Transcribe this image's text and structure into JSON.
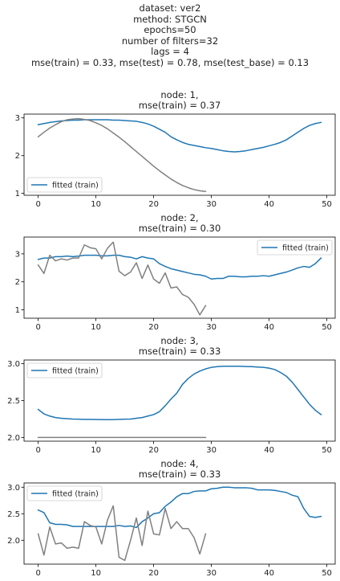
{
  "figure": {
    "suptitle_lines": [
      "dataset: ver2",
      "method: STGCN",
      "epochs=50",
      "number of filters=32",
      "lags = 4",
      "mse(train) = 0.33, mse(test) = 0.78, mse(test_base) = 0.13"
    ]
  },
  "colors": {
    "fitted": "#1f77b4",
    "observed": "#808080",
    "axis": "#000000"
  },
  "chart_data": [
    {
      "type": "line",
      "title": [
        "node: 1,",
        "mse(train) = 0.37"
      ],
      "xlim": [
        -2.45,
        51.45
      ],
      "ylim": [
        0.95,
        3.1
      ],
      "xticks": [
        0,
        10,
        20,
        30,
        40,
        50
      ],
      "yticks": [
        1,
        2,
        3
      ],
      "ytick_labels": [
        "1",
        "2",
        "3"
      ],
      "legend": {
        "label": "fitted (train)",
        "loc": "lower left"
      },
      "series": [
        {
          "name": "fitted (train)",
          "color": "#1f77b4",
          "x": [
            0,
            1,
            2,
            3,
            4,
            5,
            6,
            7,
            8,
            9,
            10,
            11,
            12,
            13,
            14,
            15,
            16,
            17,
            18,
            19,
            20,
            21,
            22,
            23,
            24,
            25,
            26,
            27,
            28,
            29,
            30,
            31,
            32,
            33,
            34,
            35,
            36,
            37,
            38,
            39,
            40,
            41,
            42,
            43,
            44,
            45,
            46,
            47,
            48,
            49
          ],
          "y": [
            2.82,
            2.85,
            2.88,
            2.9,
            2.92,
            2.93,
            2.94,
            2.94,
            2.95,
            2.95,
            2.95,
            2.95,
            2.95,
            2.94,
            2.94,
            2.93,
            2.92,
            2.91,
            2.88,
            2.84,
            2.78,
            2.7,
            2.62,
            2.5,
            2.42,
            2.35,
            2.3,
            2.27,
            2.24,
            2.21,
            2.19,
            2.16,
            2.13,
            2.11,
            2.1,
            2.11,
            2.13,
            2.16,
            2.19,
            2.22,
            2.26,
            2.3,
            2.35,
            2.42,
            2.52,
            2.62,
            2.72,
            2.8,
            2.85,
            2.88
          ]
        },
        {
          "name": "",
          "color": "#808080",
          "x": [
            0,
            1,
            2,
            3,
            4,
            5,
            6,
            7,
            8,
            9,
            10,
            11,
            12,
            13,
            14,
            15,
            16,
            17,
            18,
            19,
            20,
            21,
            22,
            23,
            24,
            25,
            26,
            27,
            28,
            29
          ],
          "y": [
            2.5,
            2.62,
            2.73,
            2.82,
            2.9,
            2.95,
            2.97,
            2.98,
            2.96,
            2.93,
            2.87,
            2.8,
            2.71,
            2.6,
            2.49,
            2.37,
            2.24,
            2.11,
            1.98,
            1.85,
            1.72,
            1.6,
            1.49,
            1.38,
            1.29,
            1.21,
            1.15,
            1.1,
            1.07,
            1.05
          ]
        }
      ]
    },
    {
      "type": "line",
      "title": [
        "node: 2,",
        "mse(train) = 0.30"
      ],
      "xlim": [
        -2.45,
        51.45
      ],
      "ylim": [
        0.7,
        3.6
      ],
      "xticks": [
        0,
        10,
        20,
        30,
        40,
        50
      ],
      "yticks": [
        1,
        2,
        3
      ],
      "ytick_labels": [
        "1",
        "2",
        "3"
      ],
      "legend": {
        "label": "fitted (train)",
        "loc": "upper right"
      },
      "series": [
        {
          "name": "fitted (train)",
          "color": "#1f77b4",
          "x": [
            0,
            1,
            2,
            3,
            4,
            5,
            6,
            7,
            8,
            9,
            10,
            11,
            12,
            13,
            14,
            15,
            16,
            17,
            18,
            19,
            20,
            21,
            22,
            23,
            24,
            25,
            26,
            27,
            28,
            29,
            30,
            31,
            32,
            33,
            34,
            35,
            36,
            37,
            38,
            39,
            40,
            41,
            42,
            43,
            44,
            45,
            46,
            47,
            48,
            49
          ],
          "y": [
            2.8,
            2.85,
            2.85,
            2.9,
            2.9,
            2.92,
            2.9,
            2.92,
            2.95,
            2.95,
            2.95,
            2.93,
            2.93,
            2.95,
            2.95,
            2.9,
            2.88,
            2.82,
            2.9,
            2.85,
            2.82,
            2.65,
            2.55,
            2.47,
            2.42,
            2.37,
            2.32,
            2.27,
            2.25,
            2.2,
            2.1,
            2.12,
            2.12,
            2.2,
            2.2,
            2.18,
            2.18,
            2.2,
            2.2,
            2.22,
            2.2,
            2.25,
            2.3,
            2.35,
            2.42,
            2.5,
            2.55,
            2.52,
            2.65,
            2.85
          ]
        },
        {
          "name": "",
          "color": "#808080",
          "x": [
            0,
            1,
            2,
            3,
            4,
            5,
            6,
            7,
            8,
            9,
            10,
            11,
            12,
            13,
            14,
            15,
            16,
            17,
            18,
            19,
            20,
            21,
            22,
            23,
            24,
            25,
            26,
            27,
            28,
            29
          ],
          "y": [
            2.6,
            2.3,
            2.95,
            2.75,
            2.82,
            2.78,
            2.85,
            2.85,
            3.32,
            3.22,
            3.18,
            2.82,
            3.2,
            3.42,
            2.38,
            2.22,
            2.35,
            2.68,
            2.12,
            2.6,
            2.1,
            1.95,
            2.32,
            1.78,
            1.82,
            1.55,
            1.45,
            1.2,
            0.82,
            1.15
          ]
        }
      ]
    },
    {
      "type": "line",
      "title": [
        "node: 3,",
        "mse(train) = 0.33"
      ],
      "xlim": [
        -2.45,
        51.45
      ],
      "ylim": [
        1.95,
        3.05
      ],
      "xticks": [
        0,
        10,
        20,
        30,
        40,
        50
      ],
      "yticks": [
        2.0,
        2.5,
        3.0
      ],
      "ytick_labels": [
        "2.0",
        "2.5",
        "3.0"
      ],
      "legend": {
        "label": "fitted (train)",
        "loc": "upper left"
      },
      "series": [
        {
          "name": "fitted (train)",
          "color": "#1f77b4",
          "x": [
            0,
            1,
            2,
            3,
            4,
            5,
            6,
            7,
            8,
            9,
            10,
            11,
            12,
            13,
            14,
            15,
            16,
            17,
            18,
            19,
            20,
            21,
            22,
            23,
            24,
            25,
            26,
            27,
            28,
            29,
            30,
            31,
            32,
            33,
            34,
            35,
            36,
            37,
            38,
            39,
            40,
            41,
            42,
            43,
            44,
            45,
            46,
            47,
            48,
            49
          ],
          "y": [
            2.38,
            2.32,
            2.29,
            2.27,
            2.26,
            2.255,
            2.25,
            2.248,
            2.246,
            2.245,
            2.244,
            2.243,
            2.242,
            2.243,
            2.245,
            2.248,
            2.25,
            2.26,
            2.27,
            2.29,
            2.31,
            2.35,
            2.43,
            2.52,
            2.6,
            2.72,
            2.8,
            2.86,
            2.9,
            2.93,
            2.95,
            2.96,
            2.965,
            2.965,
            2.965,
            2.965,
            2.962,
            2.96,
            2.955,
            2.95,
            2.94,
            2.92,
            2.88,
            2.83,
            2.75,
            2.65,
            2.55,
            2.45,
            2.37,
            2.31
          ]
        },
        {
          "name": "",
          "color": "#808080",
          "x": [
            0,
            1,
            2,
            3,
            4,
            5,
            6,
            7,
            8,
            9,
            10,
            11,
            12,
            13,
            14,
            15,
            16,
            17,
            18,
            19,
            20,
            21,
            22,
            23,
            24,
            25,
            26,
            27,
            28,
            29
          ],
          "y": [
            2.0,
            2.0,
            2.0,
            2.0,
            2.0,
            2.0,
            2.0,
            2.0,
            2.0,
            2.0,
            2.0,
            2.0,
            2.0,
            2.0,
            2.0,
            2.0,
            2.0,
            2.0,
            2.0,
            2.0,
            2.0,
            2.0,
            2.0,
            2.0,
            2.0,
            2.0,
            2.0,
            2.0,
            2.0,
            2.0
          ]
        }
      ]
    },
    {
      "type": "line",
      "title": [
        "node: 4,",
        "mse(train) = 0.33"
      ],
      "xlim": [
        -2.45,
        51.45
      ],
      "ylim": [
        1.55,
        3.08
      ],
      "xticks": [
        0,
        10,
        20,
        30,
        40,
        50
      ],
      "yticks": [
        2.0,
        2.5,
        3.0
      ],
      "ytick_labels": [
        "2.0",
        "2.5",
        "3.0"
      ],
      "legend": {
        "label": "fitted (train)",
        "loc": "upper left"
      },
      "series": [
        {
          "name": "fitted (train)",
          "color": "#1f77b4",
          "x": [
            0,
            1,
            2,
            3,
            4,
            5,
            6,
            7,
            8,
            9,
            10,
            11,
            12,
            13,
            14,
            15,
            16,
            17,
            18,
            19,
            20,
            21,
            22,
            23,
            24,
            25,
            26,
            27,
            28,
            29,
            30,
            31,
            32,
            33,
            34,
            35,
            36,
            37,
            38,
            39,
            40,
            41,
            42,
            43,
            44,
            45,
            46,
            47,
            48,
            49
          ],
          "y": [
            2.57,
            2.52,
            2.33,
            2.3,
            2.3,
            2.29,
            2.26,
            2.26,
            2.26,
            2.26,
            2.26,
            2.26,
            2.26,
            2.26,
            2.28,
            2.26,
            2.27,
            2.24,
            2.35,
            2.42,
            2.5,
            2.52,
            2.64,
            2.72,
            2.82,
            2.88,
            2.88,
            2.92,
            2.93,
            2.93,
            2.97,
            2.98,
            3.0,
            3.0,
            2.99,
            2.99,
            2.99,
            2.98,
            2.95,
            2.95,
            2.95,
            2.94,
            2.92,
            2.9,
            2.85,
            2.82,
            2.6,
            2.45,
            2.43,
            2.45
          ]
        },
        {
          "name": "",
          "color": "#808080",
          "x": [
            0,
            1,
            2,
            3,
            4,
            5,
            6,
            7,
            8,
            9,
            10,
            11,
            12,
            13,
            14,
            15,
            16,
            17,
            18,
            19,
            20,
            21,
            22,
            23,
            24,
            25,
            26,
            27,
            28,
            29
          ],
          "y": [
            2.12,
            1.72,
            2.25,
            1.93,
            1.95,
            1.85,
            1.87,
            1.85,
            2.35,
            2.28,
            2.25,
            1.93,
            2.38,
            2.65,
            1.68,
            1.62,
            2.0,
            2.42,
            1.9,
            2.55,
            2.12,
            2.1,
            2.6,
            2.22,
            2.35,
            2.22,
            2.22,
            2.05,
            1.74,
            2.12
          ]
        }
      ]
    }
  ]
}
